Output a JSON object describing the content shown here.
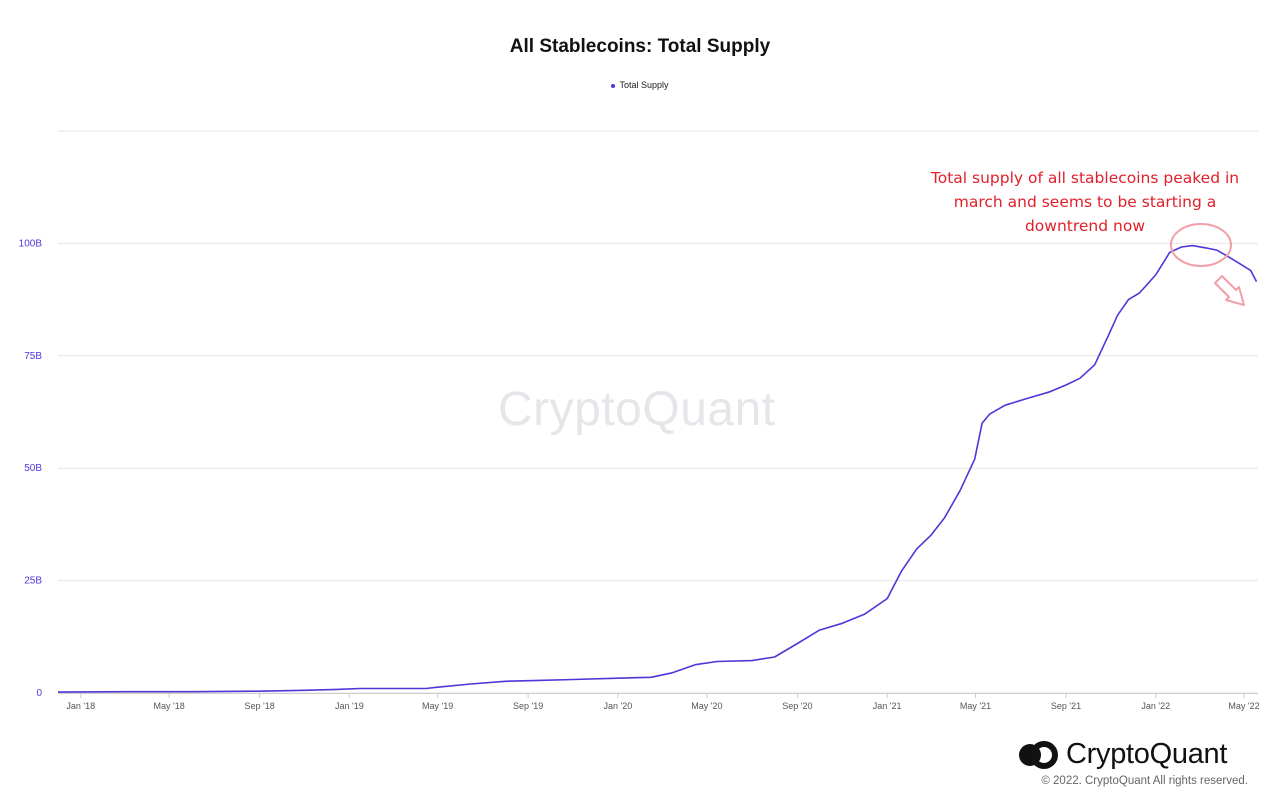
{
  "colors": {
    "series": "#4b38d8",
    "annotation": "#e0202a",
    "annotation_marks": "#f0a0a6",
    "grid": "#e6e6e6"
  },
  "watermark": "CryptoQuant",
  "annotation": {
    "lines": [
      "Total supply of all stablecoins peaked in",
      "march and seems to be starting a",
      "downtrend now"
    ]
  },
  "footer": {
    "brand": "CryptoQuant",
    "copyright": "© 2022. CryptoQuant All rights reserved.",
    "logo_icon": "cryptoquant-logo-icon"
  },
  "chart_data": {
    "type": "line",
    "title": "All Stablecoins: Total Supply",
    "legend": [
      {
        "name": "Total Supply",
        "position": "top-center"
      }
    ],
    "xlabel": "",
    "ylabel": "",
    "ylim": [
      0,
      125
    ],
    "y_unit": "B",
    "grid": true,
    "ytick_labels": [
      "0",
      "25B",
      "50B",
      "75B",
      "100B"
    ],
    "ytick_values": [
      0,
      25,
      50,
      75,
      100
    ],
    "xtick_labels": [
      "Jan '18",
      "May '18",
      "Sep '18",
      "Jan '19",
      "May '19",
      "Sep '19",
      "Jan '20",
      "May '20",
      "Sep '20",
      "Jan '21",
      "May '21",
      "Sep '21",
      "Jan '22",
      "May '22"
    ],
    "xtick_dates": [
      "2018-01-01",
      "2018-05-01",
      "2018-09-01",
      "2019-01-01",
      "2019-05-01",
      "2019-09-01",
      "2020-01-01",
      "2020-05-01",
      "2020-09-01",
      "2021-01-01",
      "2021-05-01",
      "2021-09-01",
      "2022-01-01",
      "2022-05-01"
    ],
    "xlim": [
      "2017-12-01",
      "2022-05-20"
    ],
    "series": [
      {
        "name": "Total Supply",
        "x": [
          "2017-12-01",
          "2018-03-01",
          "2018-06-01",
          "2018-09-01",
          "2018-11-01",
          "2018-12-15",
          "2019-01-15",
          "2019-03-01",
          "2019-04-15",
          "2019-05-01",
          "2019-06-15",
          "2019-08-01",
          "2019-09-15",
          "2019-11-01",
          "2020-01-01",
          "2020-02-15",
          "2020-03-15",
          "2020-04-15",
          "2020-05-15",
          "2020-07-01",
          "2020-08-01",
          "2020-09-01",
          "2020-10-01",
          "2020-11-01",
          "2020-12-01",
          "2021-01-01",
          "2021-01-20",
          "2021-02-10",
          "2021-03-01",
          "2021-03-20",
          "2021-04-10",
          "2021-04-30",
          "2021-05-10",
          "2021-05-20",
          "2021-06-10",
          "2021-07-10",
          "2021-08-10",
          "2021-09-01",
          "2021-09-20",
          "2021-10-10",
          "2021-10-30",
          "2021-11-10",
          "2021-11-25",
          "2021-12-10",
          "2022-01-01",
          "2022-01-20",
          "2022-02-05",
          "2022-02-20",
          "2022-03-10",
          "2022-03-25",
          "2022-04-10",
          "2022-04-25",
          "2022-05-10",
          "2022-05-18"
        ],
        "values": [
          0.2,
          0.3,
          0.3,
          0.4,
          0.6,
          0.8,
          1.0,
          1.0,
          1.0,
          1.3,
          2.0,
          2.6,
          2.8,
          3.0,
          3.3,
          3.5,
          4.5,
          6.3,
          7.0,
          7.2,
          8.0,
          11.0,
          14.0,
          15.5,
          17.5,
          21.0,
          27.0,
          32.0,
          35.0,
          39.0,
          45.0,
          52.0,
          60.0,
          62.0,
          64.0,
          65.5,
          67.0,
          68.5,
          70.0,
          73.0,
          80.0,
          84.0,
          87.5,
          89.0,
          93.0,
          98.0,
          99.2,
          99.5,
          99.0,
          98.5,
          97.0,
          95.5,
          94.0,
          91.5
        ]
      }
    ]
  }
}
